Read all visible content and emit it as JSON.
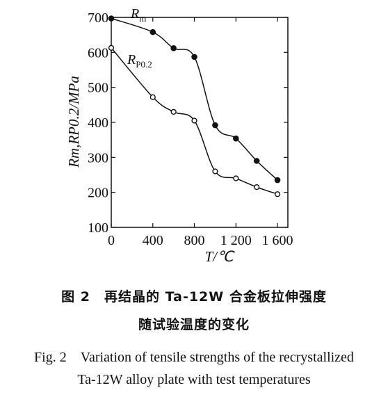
{
  "chart_data": {
    "type": "line",
    "xlabel": "T/℃",
    "ylabel": "Rm,RP0.2/MPa",
    "xlim": [
      0,
      1700
    ],
    "ylim": [
      100,
      700
    ],
    "x_ticks": [
      "0",
      "400",
      "800",
      "1 200",
      "1 600"
    ],
    "y_ticks": [
      "100",
      "200",
      "300",
      "400",
      "500",
      "600",
      "700"
    ],
    "grid": false,
    "series": [
      {
        "name": "Rm",
        "marker": "filled-circle",
        "x": [
          0,
          400,
          600,
          800,
          1000,
          1200,
          1400,
          1600
        ],
        "y": [
          697,
          658,
          612,
          587,
          392,
          354,
          290,
          235
        ]
      },
      {
        "name": "RP0.2",
        "marker": "open-circle",
        "x": [
          0,
          400,
          600,
          800,
          1000,
          1200,
          1400,
          1600
        ],
        "y": [
          613,
          472,
          430,
          405,
          260,
          240,
          215,
          195
        ]
      }
    ]
  },
  "caption": {
    "cn_line1": "图 2　再结晶的 Ta-12W 合金板拉伸强度",
    "cn_line2": "随试验温度的变化",
    "en_line1": "Fig. 2　Variation of tensile strengths of the recrystallized",
    "en_line2": "Ta-12W alloy plate with test temperatures"
  }
}
